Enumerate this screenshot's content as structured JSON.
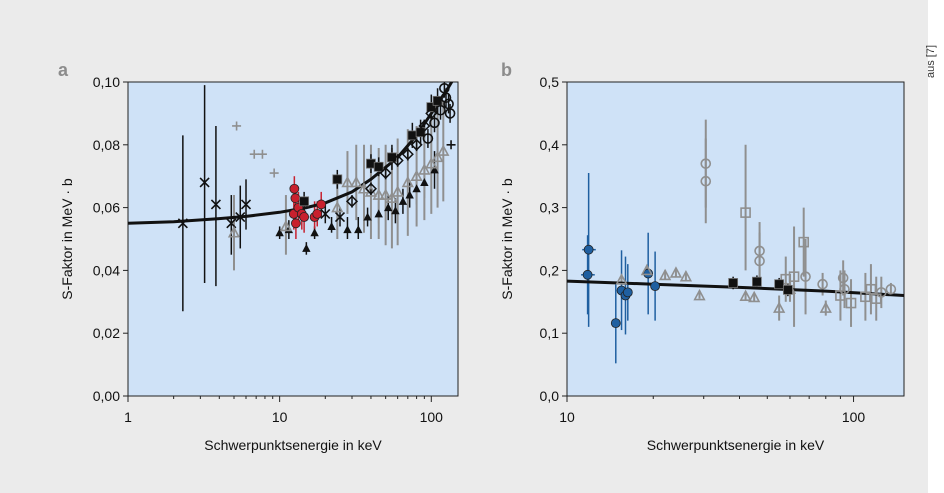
{
  "credit": "aus [7]",
  "colors": {
    "plot_bg": "#cfe2f7",
    "red": "#c8202e",
    "blue": "#1f5fa0",
    "gray": "#8f8f8f",
    "black": "#111111"
  },
  "chart_data": [
    {
      "type": "scatter",
      "panel_label": "a",
      "xscale": "log",
      "xlim": [
        1,
        150
      ],
      "ylim": [
        0,
        0.1
      ],
      "xticks": [
        {
          "v": 1,
          "label": "1"
        },
        {
          "v": 10,
          "label": "10"
        },
        {
          "v": 100,
          "label": "100"
        }
      ],
      "yticks": [
        {
          "v": 0,
          "label": "0,00"
        },
        {
          "v": 0.02,
          "label": "0,02"
        },
        {
          "v": 0.04,
          "label": "0,04"
        },
        {
          "v": 0.06,
          "label": "0,06"
        },
        {
          "v": 0.08,
          "label": "0,08"
        },
        {
          "v": 0.1,
          "label": "0,10"
        }
      ],
      "xlabel": "Schwerpunktsenergie in keV",
      "ylabel": "S-Faktor in MeV · b",
      "fit": [
        [
          1,
          0.055
        ],
        [
          2,
          0.0555
        ],
        [
          4,
          0.0565
        ],
        [
          6,
          0.0572
        ],
        [
          10,
          0.0585
        ],
        [
          15,
          0.06
        ],
        [
          20,
          0.0615
        ],
        [
          30,
          0.065
        ],
        [
          40,
          0.069
        ],
        [
          60,
          0.076
        ],
        [
          80,
          0.083
        ],
        [
          100,
          0.09
        ],
        [
          125,
          0.097
        ],
        [
          140,
          0.101
        ]
      ],
      "series": [
        {
          "marker": "x",
          "color": "#111111",
          "points": [
            [
              2.3,
              0.055,
              0.027,
              0.083
            ],
            [
              3.2,
              0.068,
              0.036,
              0.099
            ],
            [
              3.8,
              0.061,
              0.035,
              0.086
            ],
            [
              4.8,
              0.055,
              0.045,
              0.064
            ],
            [
              5.5,
              0.057,
              0.047,
              0.067
            ],
            [
              6,
              0.061,
              0.053,
              0.069
            ],
            [
              20,
              0.058,
              0.055,
              0.061
            ],
            [
              25,
              0.057,
              0.054,
              0.06
            ]
          ]
        },
        {
          "marker": "tri-filled",
          "color": "#111111",
          "points": [
            [
              10,
              0.052,
              0.05,
              0.054
            ],
            [
              11.5,
              0.053,
              0.05,
              0.056
            ],
            [
              15,
              0.047,
              0.045,
              0.049
            ],
            [
              17,
              0.052,
              0.05,
              0.054
            ],
            [
              22,
              0.054,
              0.052,
              0.057
            ],
            [
              28,
              0.053,
              0.05,
              0.057
            ],
            [
              33,
              0.053,
              0.05,
              0.057
            ],
            [
              38,
              0.057,
              0.054,
              0.06
            ],
            [
              45,
              0.058,
              0.055,
              0.062
            ],
            [
              52,
              0.06,
              0.056,
              0.064
            ],
            [
              58,
              0.059,
              0.055,
              0.063
            ],
            [
              65,
              0.062,
              0.058,
              0.066
            ],
            [
              72,
              0.064,
              0.06,
              0.068
            ],
            [
              80,
              0.066,
              0.061,
              0.071
            ],
            [
              90,
              0.068,
              0.063,
              0.073
            ],
            [
              105,
              0.072,
              0.066,
              0.078
            ]
          ]
        },
        {
          "marker": "plus",
          "color": "#8f8f8f",
          "points": [
            [
              5.2,
              0.086,
              0.086,
              0.086
            ],
            [
              6.8,
              0.077,
              0.077,
              0.077
            ],
            [
              7.7,
              0.077,
              0.077,
              0.077
            ],
            [
              9.2,
              0.071,
              0.071,
              0.071
            ]
          ]
        },
        {
          "marker": "plus",
          "color": "#111111",
          "points": [
            [
              135,
              0.08,
              0.08,
              0.08
            ]
          ]
        },
        {
          "marker": "tri-open",
          "color": "#8f8f8f",
          "points": [
            [
              5,
              0.052,
              0.04,
              0.064
            ],
            [
              11,
              0.054,
              0.045,
              0.064
            ],
            [
              24,
              0.06,
              0.05,
              0.07
            ],
            [
              28,
              0.068,
              0.058,
              0.078
            ],
            [
              32,
              0.068,
              0.056,
              0.08
            ],
            [
              36,
              0.066,
              0.052,
              0.08
            ],
            [
              40,
              0.065,
              0.05,
              0.08
            ],
            [
              45,
              0.064,
              0.05,
              0.079
            ],
            [
              50,
              0.064,
              0.048,
              0.08
            ],
            [
              55,
              0.063,
              0.047,
              0.079
            ],
            [
              60,
              0.065,
              0.048,
              0.082
            ],
            [
              70,
              0.068,
              0.051,
              0.085
            ],
            [
              80,
              0.07,
              0.054,
              0.086
            ],
            [
              90,
              0.072,
              0.056,
              0.088
            ],
            [
              100,
              0.074,
              0.058,
              0.09
            ],
            [
              110,
              0.076,
              0.06,
              0.092
            ],
            [
              120,
              0.078,
              0.062,
              0.094
            ]
          ]
        },
        {
          "marker": "circle-filled",
          "color": "#c8202e",
          "points": [
            [
              12.5,
              0.066,
              0.062,
              0.07
            ],
            [
              12.7,
              0.063,
              0.059,
              0.067
            ],
            [
              12.4,
              0.058,
              0.053,
              0.063
            ],
            [
              12.8,
              0.055,
              0.05,
              0.06
            ],
            [
              13.3,
              0.06,
              0.055,
              0.065
            ],
            [
              14,
              0.058,
              0.053,
              0.063
            ],
            [
              14.5,
              0.057,
              0.052,
              0.062
            ],
            [
              17,
              0.057,
              0.052,
              0.062
            ],
            [
              17.7,
              0.058,
              0.054,
              0.062
            ],
            [
              18.8,
              0.061,
              0.057,
              0.065
            ]
          ]
        },
        {
          "marker": "square-filled",
          "color": "#111111",
          "points": [
            [
              14.5,
              0.062,
              0.059,
              0.065
            ],
            [
              24,
              0.069,
              0.066,
              0.072
            ],
            [
              40,
              0.074,
              0.071,
              0.077
            ],
            [
              45,
              0.073,
              0.07,
              0.076
            ],
            [
              55,
              0.076,
              0.072,
              0.08
            ],
            [
              75,
              0.083,
              0.079,
              0.087
            ],
            [
              85,
              0.084,
              0.08,
              0.088
            ],
            [
              100,
              0.092,
              0.088,
              0.096
            ],
            [
              110,
              0.094,
              0.09,
              0.098
            ]
          ]
        },
        {
          "marker": "diamond-open",
          "color": "#111111",
          "points": [
            [
              30,
              0.062,
              0.06,
              0.064
            ],
            [
              40,
              0.066,
              0.064,
              0.068
            ],
            [
              50,
              0.071,
              0.069,
              0.073
            ],
            [
              60,
              0.075,
              0.073,
              0.077
            ],
            [
              70,
              0.077,
              0.075,
              0.079
            ],
            [
              80,
              0.08,
              0.078,
              0.082
            ],
            [
              90,
              0.086,
              0.084,
              0.088
            ],
            [
              100,
              0.09,
              0.088,
              0.092
            ]
          ]
        },
        {
          "marker": "circle-open",
          "color": "#111111",
          "points": [
            [
              95,
              0.082,
              0.079,
              0.085
            ],
            [
              105,
              0.087,
              0.084,
              0.09
            ],
            [
              115,
              0.091,
              0.088,
              0.094
            ],
            [
              125,
              0.095,
              0.092,
              0.098
            ],
            [
              130,
              0.093,
              0.09,
              0.096
            ],
            [
              133,
              0.09,
              0.087,
              0.093
            ],
            [
              122,
              0.098,
              0.095,
              0.1
            ]
          ]
        }
      ]
    },
    {
      "type": "scatter",
      "panel_label": "b",
      "xscale": "log",
      "xlim": [
        10,
        150
      ],
      "ylim": [
        0,
        0.5
      ],
      "xticks": [
        {
          "v": 10,
          "label": "10"
        },
        {
          "v": 100,
          "label": "100"
        }
      ],
      "yticks": [
        {
          "v": 0,
          "label": "0,0"
        },
        {
          "v": 0.1,
          "label": "0,1"
        },
        {
          "v": 0.2,
          "label": "0,2"
        },
        {
          "v": 0.3,
          "label": "0,3"
        },
        {
          "v": 0.4,
          "label": "0,4"
        },
        {
          "v": 0.5,
          "label": "0,5"
        }
      ],
      "xlabel": "Schwerpunktsenergie in keV",
      "ylabel": "S-Faktor in MeV · b",
      "fit": [
        [
          10,
          0.183
        ],
        [
          20,
          0.178
        ],
        [
          40,
          0.173
        ],
        [
          80,
          0.167
        ],
        [
          150,
          0.16
        ]
      ],
      "series": [
        {
          "marker": "circle-filled",
          "color": "#1f5fa0",
          "points": [
            [
              11.9,
              0.233,
              0.11,
              0.355
            ],
            [
              11.8,
              0.193,
              0.13,
              0.256
            ],
            [
              14.8,
              0.116,
              0.052,
              0.18
            ],
            [
              15.5,
              0.168,
              0.105,
              0.232
            ],
            [
              16,
              0.16,
              0.098,
              0.222
            ],
            [
              16.3,
              0.165,
              0.12,
              0.21
            ],
            [
              19.2,
              0.195,
              0.13,
              0.26
            ],
            [
              20.3,
              0.175,
              0.12,
              0.23
            ]
          ]
        },
        {
          "marker": "tri-open",
          "color": "#8f8f8f",
          "points": [
            [
              15.5,
              0.185,
              0.18,
              0.19
            ],
            [
              19,
              0.2,
              0.195,
              0.205
            ],
            [
              22,
              0.192,
              0.185,
              0.2
            ],
            [
              24,
              0.196,
              0.19,
              0.202
            ],
            [
              26,
              0.19,
              0.183,
              0.197
            ],
            [
              29,
              0.16,
              0.155,
              0.165
            ],
            [
              42,
              0.159,
              0.152,
              0.166
            ],
            [
              45,
              0.157,
              0.15,
              0.164
            ],
            [
              55,
              0.14,
              0.12,
              0.16
            ],
            [
              60,
              0.17,
              0.15,
              0.19
            ],
            [
              80,
              0.14,
              0.128,
              0.152
            ]
          ]
        },
        {
          "marker": "circle-open",
          "color": "#8f8f8f",
          "points": [
            [
              30.5,
              0.37,
              0.3,
              0.44
            ],
            [
              30.5,
              0.342,
              0.275,
              0.41
            ],
            [
              47,
              0.231,
              0.185,
              0.277
            ],
            [
              47,
              0.215,
              0.17,
              0.26
            ],
            [
              68,
              0.19,
              0.13,
              0.25
            ],
            [
              78,
              0.178,
              0.16,
              0.196
            ],
            [
              92,
              0.188,
              0.16,
              0.216
            ],
            [
              93,
              0.17,
              0.14,
              0.2
            ],
            [
              125,
              0.165,
              0.14,
              0.19
            ],
            [
              135,
              0.17,
              0.16,
              0.18
            ]
          ]
        },
        {
          "marker": "square-open",
          "color": "#8f8f8f",
          "points": [
            [
              42,
              0.292,
              0.2,
              0.4
            ],
            [
              58,
              0.186,
              0.15,
              0.222
            ],
            [
              62,
              0.19,
              0.11,
              0.27
            ],
            [
              67,
              0.245,
              0.19,
              0.3
            ],
            [
              90,
              0.16,
              0.12,
              0.2
            ],
            [
              98,
              0.148,
              0.11,
              0.186
            ],
            [
              110,
              0.158,
              0.12,
              0.196
            ],
            [
              115,
              0.17,
              0.13,
              0.21
            ],
            [
              120,
              0.155,
              0.12,
              0.19
            ]
          ]
        },
        {
          "marker": "square-filled",
          "color": "#111111",
          "points": [
            [
              38,
              0.18,
              0.17,
              0.19
            ],
            [
              46,
              0.182,
              0.172,
              0.192
            ],
            [
              55,
              0.178,
              0.168,
              0.188
            ],
            [
              59,
              0.169,
              0.159,
              0.179
            ]
          ]
        }
      ]
    }
  ]
}
